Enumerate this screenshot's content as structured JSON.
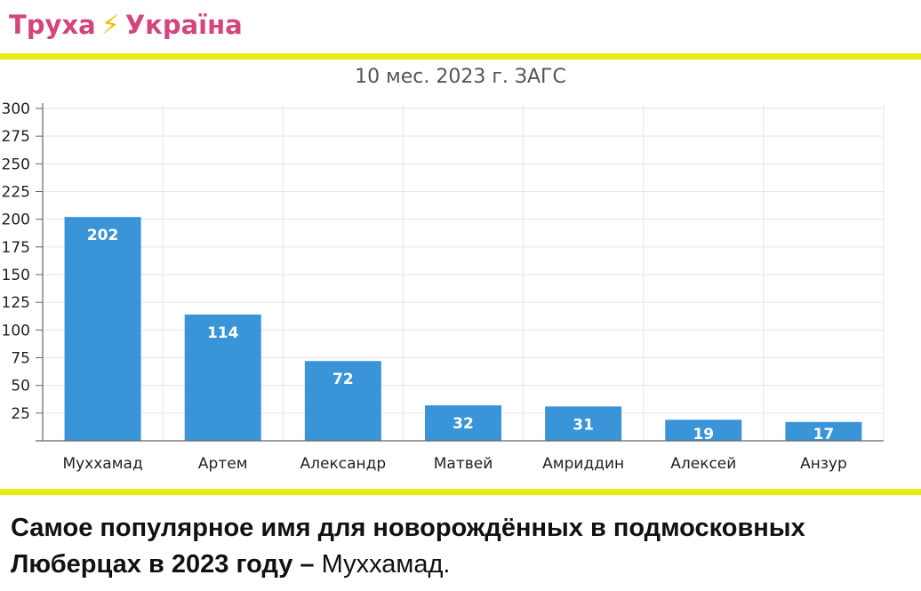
{
  "header": {
    "brand_left": "Труха",
    "brand_icon": "lightning-icon",
    "brand_right": "Україна",
    "brand_color": "#d4457f",
    "stripe_color": "#e8ec13"
  },
  "chart_data": {
    "type": "bar",
    "title": "10 мес. 2023 г. ЗАГС",
    "categories": [
      "Муххамад",
      "Артем",
      "Александр",
      "Матвей",
      "Амриддин",
      "Алексей",
      "Анзур"
    ],
    "values": [
      202,
      114,
      72,
      32,
      31,
      19,
      17
    ],
    "data_labels": [
      "202",
      "114",
      "72",
      "32",
      "31",
      "19",
      "17"
    ],
    "yticks": [
      "25",
      "50",
      "75",
      "100",
      "125",
      "150",
      "175",
      "200",
      "225",
      "250",
      "275",
      "300"
    ],
    "ylim": [
      0,
      300
    ],
    "grid": true,
    "bar_color": "#3a94d8"
  },
  "caption": {
    "bold": "Самое популярное имя для новорождённых в подмосковных Люберцах в 2023 году –",
    "normal": "Муххамад."
  }
}
